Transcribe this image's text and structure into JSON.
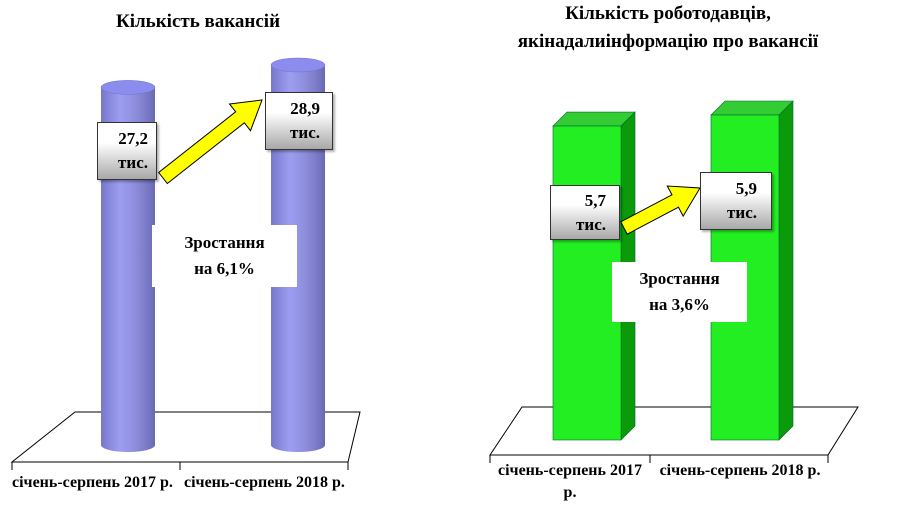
{
  "chart_data": [
    {
      "type": "bar",
      "bar_shape": "cylinder",
      "title": [
        "Кількість вакансій"
      ],
      "categories": [
        "січень-серпень 2017 р.",
        "січень-серпень 2018 р."
      ],
      "values": [
        27.2,
        28.9
      ],
      "value_labels": [
        "27,2 тис.",
        "28,9 тис."
      ],
      "color": "#8c8cee",
      "annotation": [
        "Зростання",
        "на 6,1%"
      ]
    },
    {
      "type": "bar",
      "bar_shape": "box",
      "title": [
        "Кількість роботодавців, які",
        "надали",
        "інформацію про вакансії"
      ],
      "categories": [
        "січень-серпень 2017 р.",
        "січень-серпень 2018 р."
      ],
      "values": [
        5.7,
        5.9
      ],
      "value_labels": [
        "5,7 тис.",
        "5,9 тис."
      ],
      "color": "#22ee22",
      "annotation": [
        "Зростання",
        "на 3,6%"
      ]
    }
  ]
}
